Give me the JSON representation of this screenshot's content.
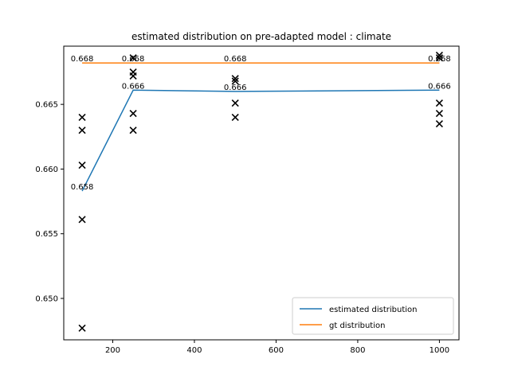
{
  "chart_data": {
    "type": "line",
    "title": "estimated distribution on pre-adapted model : climate",
    "xlabel": "",
    "ylabel": "",
    "xlim": [
      80,
      1048
    ],
    "ylim": [
      0.6468,
      0.6695
    ],
    "xticks": [
      200,
      400,
      600,
      800,
      1000
    ],
    "xtick_labels": [
      "200",
      "400",
      "600",
      "800",
      "1000"
    ],
    "yticks": [
      0.65,
      0.655,
      0.66,
      0.665
    ],
    "ytick_labels": [
      "0.650",
      "0.655",
      "0.660",
      "0.665"
    ],
    "grid": false,
    "legend_position": "lower-right",
    "series": [
      {
        "name": "estimated distribution",
        "color": "#1f77b4",
        "x": [
          125,
          250,
          500,
          1000
        ],
        "y": [
          0.6583,
          0.6661,
          0.666,
          0.6661
        ],
        "labels": [
          "0.658",
          "0.666",
          "0.666",
          "0.666"
        ]
      },
      {
        "name": "gt distribution",
        "color": "#ff7f0e",
        "x": [
          125,
          250,
          500,
          1000
        ],
        "y": [
          0.6682,
          0.6682,
          0.6682,
          0.6682
        ],
        "labels": [
          "0.668",
          "0.668",
          "0.668",
          "0.668"
        ]
      }
    ],
    "scatter": {
      "marker": "x",
      "color": "#000000",
      "points": [
        [
          125,
          0.664
        ],
        [
          125,
          0.663
        ],
        [
          125,
          0.6603
        ],
        [
          125,
          0.6561
        ],
        [
          125,
          0.6477
        ],
        [
          250,
          0.6686
        ],
        [
          250,
          0.6675
        ],
        [
          250,
          0.6672
        ],
        [
          250,
          0.6643
        ],
        [
          250,
          0.663
        ],
        [
          500,
          0.667
        ],
        [
          500,
          0.6668
        ],
        [
          500,
          0.6651
        ],
        [
          500,
          0.664
        ],
        [
          1000,
          0.6688
        ],
        [
          1000,
          0.6686
        ],
        [
          1000,
          0.6651
        ],
        [
          1000,
          0.6643
        ],
        [
          1000,
          0.6635
        ]
      ]
    }
  }
}
